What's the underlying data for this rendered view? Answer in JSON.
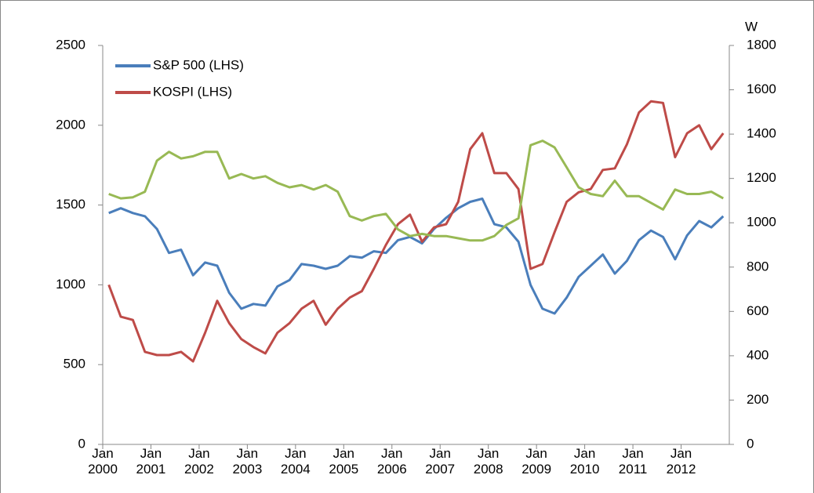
{
  "chart_data": {
    "type": "line",
    "categories": [
      "Jan 2000",
      null,
      null,
      null,
      "Jan 2001",
      null,
      null,
      null,
      "Jan 2002",
      null,
      null,
      null,
      "Jan 2003",
      null,
      null,
      null,
      "Jan 2004",
      null,
      null,
      null,
      "Jan 2005",
      null,
      null,
      null,
      "Jan 2006",
      null,
      null,
      null,
      "Jan 2007",
      null,
      null,
      null,
      "Jan 2008",
      null,
      null,
      null,
      "Jan 2009",
      null,
      null,
      null,
      "Jan 2010",
      null,
      null,
      null,
      "Jan 2011",
      null,
      null,
      null,
      "Jan 2012",
      null,
      null,
      null
    ],
    "series": [
      {
        "name": "S&P 500 (LHS)",
        "color": "#4a7ebb",
        "values": [
          1450,
          1480,
          1450,
          1430,
          1350,
          1200,
          1220,
          1060,
          1140,
          1120,
          950,
          850,
          880,
          870,
          990,
          1030,
          1130,
          1120,
          1100,
          1120,
          1180,
          1170,
          1210,
          1200,
          1280,
          1300,
          1260,
          1350,
          1420,
          1480,
          1520,
          1540,
          1380,
          1360,
          1270,
          1000,
          850,
          820,
          920,
          1050,
          1120,
          1190,
          1070,
          1150,
          1280,
          1340,
          1300,
          1160,
          1310,
          1400,
          1360,
          1430
        ]
      },
      {
        "name": "KOSPI (LHS)",
        "color": "#be4b48",
        "values": [
          1000,
          800,
          780,
          580,
          560,
          560,
          580,
          520,
          700,
          900,
          760,
          660,
          610,
          570,
          700,
          760,
          850,
          900,
          750,
          850,
          920,
          960,
          1100,
          1250,
          1380,
          1440,
          1270,
          1360,
          1380,
          1520,
          1850,
          1950,
          1700,
          1700,
          1600,
          1100,
          1130,
          1330,
          1520,
          1580,
          1600,
          1720,
          1730,
          1880,
          2080,
          2150,
          2140,
          1800,
          1950,
          2000,
          1850,
          1950
        ]
      },
      {
        "color": "#98b954",
        "axis": "y2",
        "values": [
          1130,
          1110,
          1115,
          1140,
          1280,
          1320,
          1290,
          1300,
          1320,
          1320,
          1200,
          1220,
          1200,
          1210,
          1180,
          1160,
          1170,
          1150,
          1170,
          1140,
          1030,
          1010,
          1030,
          1040,
          970,
          940,
          950,
          940,
          940,
          930,
          920,
          920,
          940,
          990,
          1020,
          1350,
          1370,
          1340,
          1250,
          1160,
          1130,
          1120,
          1190,
          1120,
          1120,
          1090,
          1060,
          1150,
          1130,
          1130,
          1140,
          1110
        ]
      }
    ],
    "ylim": [
      0,
      2500
    ],
    "yticks": [
      0,
      500,
      1000,
      1500,
      2000,
      2500
    ],
    "y2_label": "W",
    "y2lim": [
      0,
      1800
    ],
    "y2ticks": [
      0,
      200,
      400,
      600,
      800,
      1000,
      1200,
      1400,
      1600,
      1800
    ],
    "legend": "top-left"
  }
}
